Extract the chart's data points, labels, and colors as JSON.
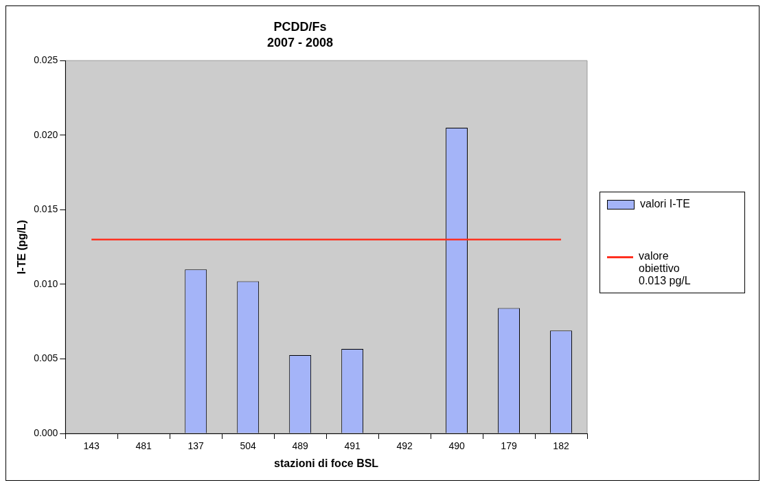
{
  "chart_data": {
    "type": "bar",
    "title": "PCDD/Fs",
    "subtitle": "2007 - 2008",
    "xlabel": "stazioni di foce BSL",
    "ylabel": "I-TE (pg/L)",
    "categories": [
      "143",
      "481",
      "137",
      "504",
      "489",
      "491",
      "492",
      "490",
      "179",
      "182"
    ],
    "series": [
      {
        "name": "valori I-TE",
        "color": "#a4b4f8",
        "values": [
          null,
          null,
          0.011,
          0.0102,
          0.00525,
          0.00567,
          null,
          0.0205,
          0.0084,
          0.0069
        ]
      },
      {
        "name": "valore obiettivo 0.013 pg/L",
        "type": "line",
        "color": "#ff3020",
        "values": [
          0.013,
          0.013,
          0.013,
          0.013,
          0.013,
          0.013,
          0.013,
          0.013,
          0.013,
          0.013
        ]
      }
    ],
    "ylim": [
      0,
      0.025
    ],
    "yticks": [
      {
        "value": 0,
        "label": "0.000"
      },
      {
        "value": 0.005,
        "label": "0.005"
      },
      {
        "value": 0.01,
        "label": "0.010"
      },
      {
        "value": 0.015,
        "label": "0.015"
      },
      {
        "value": 0.02,
        "label": "0.020"
      },
      {
        "value": 0.025,
        "label": "0.025"
      }
    ],
    "grid": false,
    "legend": "right",
    "marker": "none"
  }
}
